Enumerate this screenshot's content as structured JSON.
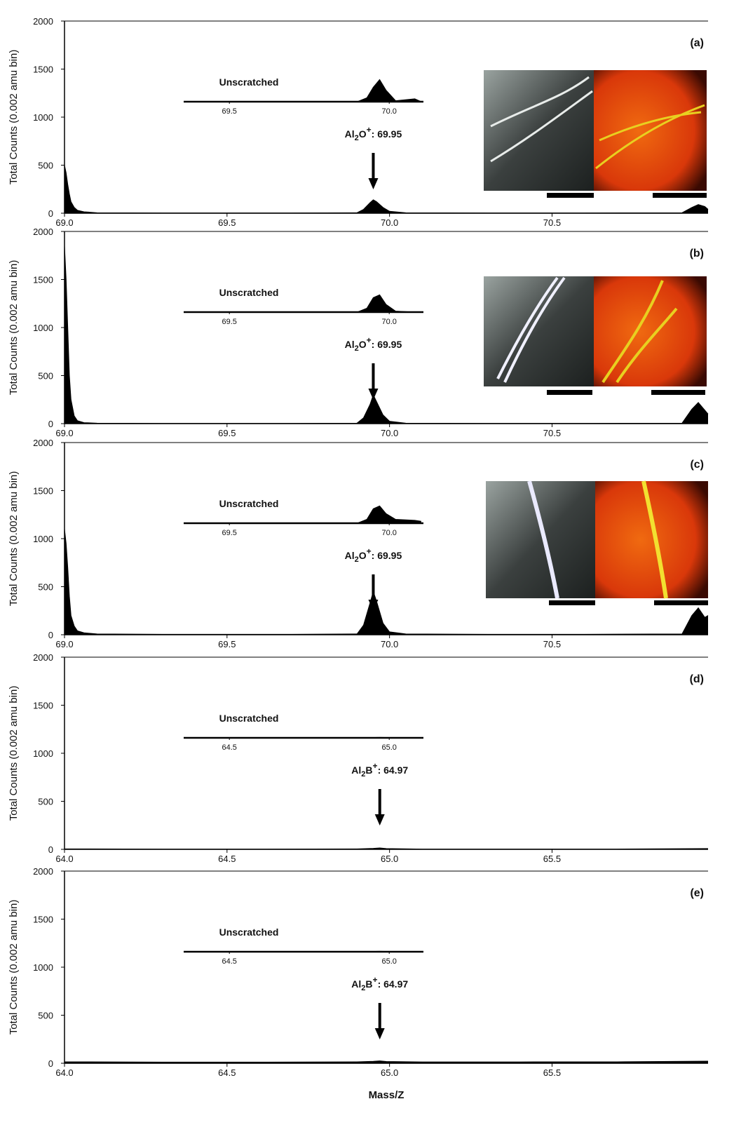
{
  "chart_data": [
    {
      "type": "area",
      "panel_label": "(a)",
      "ylabel": "Total Counts (0.002 amu bin)",
      "color": "#000000",
      "x": [
        69.0,
        69.005,
        69.01,
        69.015,
        69.02,
        69.03,
        69.04,
        69.06,
        69.1,
        69.3,
        69.5,
        69.7,
        69.9,
        69.92,
        69.94,
        69.95,
        69.96,
        69.98,
        70.0,
        70.05,
        70.3,
        70.6,
        70.9,
        70.93,
        70.95,
        70.97,
        70.98
      ],
      "values": [
        500,
        420,
        300,
        200,
        120,
        60,
        30,
        15,
        5,
        3,
        3,
        3,
        5,
        40,
        110,
        140,
        120,
        60,
        20,
        5,
        3,
        3,
        5,
        60,
        90,
        70,
        40
      ],
      "xlim": [
        69.0,
        70.98
      ],
      "ylim": [
        0,
        2000
      ],
      "xticks": [
        {
          "value": 69.0,
          "label": "69.0"
        },
        69.5,
        {
          "value": 70.0,
          "label": "70.0"
        },
        70.5
      ],
      "yticks": [
        0,
        500,
        1000,
        1500,
        2000
      ],
      "inset": {
        "title": "Unscratched",
        "x": [
          69.36,
          69.6,
          69.9,
          69.93,
          69.95,
          69.97,
          69.99,
          70.02,
          70.08,
          70.1
        ],
        "values": [
          0,
          0,
          0,
          40,
          150,
          230,
          120,
          10,
          30,
          0
        ],
        "xlim": [
          69.357,
          70.107
        ],
        "xticks": [
          69.5,
          {
            "value": 70.0,
            "label": "70.0"
          }
        ]
      },
      "annotation": {
        "element": "Al",
        "subscript": "2",
        "rest": "O",
        "charge": "+",
        "text": ": 69.95",
        "x": 69.95
      }
    },
    {
      "type": "area",
      "panel_label": "(b)",
      "ylabel": "Total Counts (0.002 amu bin)",
      "color": "#000000",
      "x": [
        69.0,
        69.005,
        69.01,
        69.015,
        69.02,
        69.03,
        69.04,
        69.06,
        69.1,
        69.3,
        69.5,
        69.7,
        69.9,
        69.92,
        69.94,
        69.95,
        69.96,
        69.98,
        70.0,
        70.05,
        70.3,
        70.6,
        70.9,
        70.93,
        70.95,
        70.97,
        70.98
      ],
      "values": [
        1850,
        1500,
        1000,
        500,
        250,
        80,
        30,
        10,
        5,
        3,
        3,
        3,
        5,
        60,
        200,
        300,
        230,
        90,
        25,
        5,
        3,
        3,
        5,
        150,
        220,
        140,
        100
      ],
      "xlim": [
        69.0,
        70.98
      ],
      "ylim": [
        0,
        2000
      ],
      "xticks": [
        {
          "value": 69.0,
          "label": "69.0"
        },
        69.5,
        {
          "value": 70.0,
          "label": "70.0"
        },
        70.5
      ],
      "yticks": [
        0,
        500,
        1000,
        1500,
        2000
      ],
      "inset": {
        "title": "Unscratched",
        "x": [
          69.36,
          69.6,
          69.9,
          69.93,
          69.95,
          69.97,
          69.99,
          70.02,
          70.08,
          70.1
        ],
        "values": [
          0,
          0,
          0,
          40,
          150,
          180,
          80,
          10,
          0,
          0
        ],
        "xlim": [
          69.357,
          70.107
        ],
        "xticks": [
          69.5,
          {
            "value": 70.0,
            "label": "70.0"
          }
        ]
      },
      "annotation": {
        "element": "Al",
        "subscript": "2",
        "rest": "O",
        "charge": "+",
        "text": ": 69.95",
        "x": 69.95
      }
    },
    {
      "type": "area",
      "panel_label": "(c)",
      "ylabel": "Total Counts (0.002 amu bin)",
      "color": "#000000",
      "x": [
        69.0,
        69.005,
        69.01,
        69.015,
        69.02,
        69.03,
        69.04,
        69.06,
        69.1,
        69.3,
        69.5,
        69.7,
        69.9,
        69.92,
        69.94,
        69.95,
        69.96,
        69.98,
        70.0,
        70.05,
        70.3,
        70.6,
        70.9,
        70.93,
        70.95,
        70.97,
        70.98
      ],
      "values": [
        1100,
        950,
        700,
        400,
        200,
        90,
        40,
        20,
        8,
        5,
        5,
        5,
        8,
        100,
        330,
        450,
        350,
        120,
        30,
        8,
        5,
        5,
        8,
        200,
        280,
        180,
        200
      ],
      "xlim": [
        69.0,
        70.98
      ],
      "ylim": [
        0,
        2000
      ],
      "xticks": [
        {
          "value": 69.0,
          "label": "69.0"
        },
        69.5,
        {
          "value": 70.0,
          "label": "70.0"
        },
        70.5
      ],
      "yticks": [
        0,
        500,
        1000,
        1500,
        2000
      ],
      "inset": {
        "title": "Unscratched",
        "x": [
          69.36,
          69.6,
          69.9,
          69.93,
          69.95,
          69.97,
          69.99,
          70.02,
          70.08,
          70.1
        ],
        "values": [
          0,
          0,
          0,
          40,
          150,
          180,
          100,
          40,
          30,
          20
        ],
        "xlim": [
          69.357,
          70.107
        ],
        "xticks": [
          69.5,
          {
            "value": 70.0,
            "label": "70.0"
          }
        ]
      },
      "annotation": {
        "element": "Al",
        "subscript": "2",
        "rest": "O",
        "charge": "+",
        "text": ": 69.95",
        "x": 69.95
      }
    },
    {
      "type": "area",
      "panel_label": "(d)",
      "ylabel": "Total Counts (0.002 amu bin)",
      "color": "#000000",
      "x": [
        64.0,
        64.3,
        64.6,
        64.9,
        64.95,
        64.97,
        64.99,
        65.1,
        65.4,
        65.7,
        65.98
      ],
      "values": [
        5,
        3,
        3,
        5,
        10,
        15,
        8,
        3,
        3,
        3,
        8
      ],
      "xlim": [
        64.0,
        65.98
      ],
      "ylim": [
        0,
        2000
      ],
      "xticks": [
        {
          "value": 64.0,
          "label": "64.0"
        },
        64.5,
        {
          "value": 65.0,
          "label": "65.0"
        },
        65.5
      ],
      "yticks": [
        0,
        500,
        1000,
        1500,
        2000
      ],
      "inset": {
        "title": "Unscratched",
        "x": [
          64.36,
          64.6,
          64.9,
          64.97,
          65.05,
          65.1
        ],
        "values": [
          0,
          0,
          0,
          5,
          0,
          0
        ],
        "xlim": [
          64.357,
          65.107
        ],
        "xticks": [
          64.5,
          {
            "value": 65.0,
            "label": "65.0"
          }
        ]
      },
      "annotation": {
        "element": "Al",
        "subscript": "2",
        "rest": "B",
        "charge": "+",
        "text": ": 64.97",
        "x": 64.97
      }
    },
    {
      "type": "area",
      "panel_label": "(e)",
      "ylabel": "Total Counts (0.002 amu bin)",
      "xlabel": "Mass/Z",
      "color": "#000000",
      "x": [
        64.0,
        64.3,
        64.6,
        64.9,
        64.95,
        64.97,
        64.99,
        65.1,
        65.4,
        65.7,
        65.98
      ],
      "values": [
        15,
        12,
        12,
        15,
        20,
        25,
        18,
        14,
        14,
        15,
        22
      ],
      "xlim": [
        64.0,
        65.98
      ],
      "ylim": [
        0,
        2000
      ],
      "xticks": [
        {
          "value": 64.0,
          "label": "64.0"
        },
        64.5,
        {
          "value": 65.0,
          "label": "65.0"
        },
        65.5
      ],
      "yticks": [
        0,
        500,
        1000,
        1500,
        2000
      ],
      "inset": {
        "title": "Unscratched",
        "x": [
          64.36,
          64.6,
          64.9,
          64.97,
          65.05,
          65.1
        ],
        "values": [
          0,
          0,
          0,
          5,
          0,
          0
        ],
        "xlim": [
          64.357,
          65.107
        ],
        "xticks": [
          64.5,
          {
            "value": 65.0,
            "label": "65.0"
          }
        ]
      },
      "annotation": {
        "element": "Al",
        "subscript": "2",
        "rest": "B",
        "charge": "+",
        "text": ": 64.97",
        "x": 64.97
      }
    }
  ]
}
